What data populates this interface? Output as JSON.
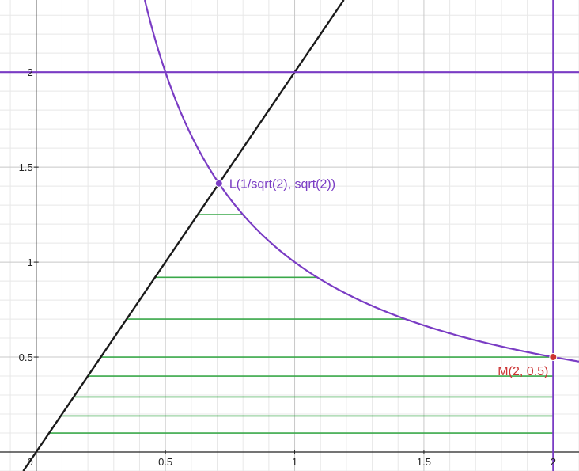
{
  "colors": {
    "minor_grid": "#e8e8e8",
    "major_grid": "#c8c8c8",
    "axis": "#222222",
    "purple": "#7a3cc4",
    "black_line": "#1a1a1a",
    "green": "#3aa84a",
    "red": "#cc3333"
  },
  "chart_data": {
    "type": "line",
    "title": "",
    "xlabel": "",
    "ylabel": "",
    "xlim": [
      -0.14,
      2.1
    ],
    "ylim": [
      -0.1,
      2.38
    ],
    "grid": true,
    "x_ticks": [
      {
        "value": 0,
        "label": "0"
      },
      {
        "value": 0.5,
        "label": "0.5"
      },
      {
        "value": 1,
        "label": "1"
      },
      {
        "value": 1.5,
        "label": "1.5"
      },
      {
        "value": 2,
        "label": "2"
      }
    ],
    "y_ticks": [
      {
        "value": 0.5,
        "label": "0.5"
      },
      {
        "value": 1,
        "label": "1"
      },
      {
        "value": 1.5,
        "label": "1.5"
      },
      {
        "value": 2,
        "label": "2"
      }
    ],
    "curves": [
      {
        "kind": "hyperbola",
        "equation": "y = 1/x",
        "color": "#7a3cc4"
      },
      {
        "kind": "line",
        "equation": "y = 2x",
        "color": "#1a1a1a"
      },
      {
        "kind": "horizontal",
        "equation": "y = 2",
        "color": "#7a3cc4"
      },
      {
        "kind": "vertical",
        "equation": "x = 2",
        "color": "#7a3cc4"
      }
    ],
    "strips": [
      {
        "y": 0.1,
        "x_start": 0.05,
        "x_end": 2
      },
      {
        "y": 0.19,
        "x_start": 0.095,
        "x_end": 2
      },
      {
        "y": 0.29,
        "x_start": 0.145,
        "x_end": 2
      },
      {
        "y": 0.4,
        "x_start": 0.2,
        "x_end": 2
      },
      {
        "y": 0.5,
        "x_start": 0.25,
        "x_end": 2
      },
      {
        "y": 0.7,
        "x_start": 0.35,
        "x_end": 1.4286
      },
      {
        "y": 0.92,
        "x_start": 0.46,
        "x_end": 1.087
      },
      {
        "y": 1.25,
        "x_start": 0.625,
        "x_end": 0.8
      }
    ],
    "points": [
      {
        "name": "L",
        "x": 0.7071,
        "y": 1.4142,
        "label": "L(1/sqrt(2), sqrt(2))",
        "color": "#7a3cc4",
        "label_side": "right"
      },
      {
        "name": "M",
        "x": 2,
        "y": 0.5,
        "label": "M(2, 0.5)",
        "color": "#cc3333",
        "label_side": "below-left"
      }
    ]
  }
}
